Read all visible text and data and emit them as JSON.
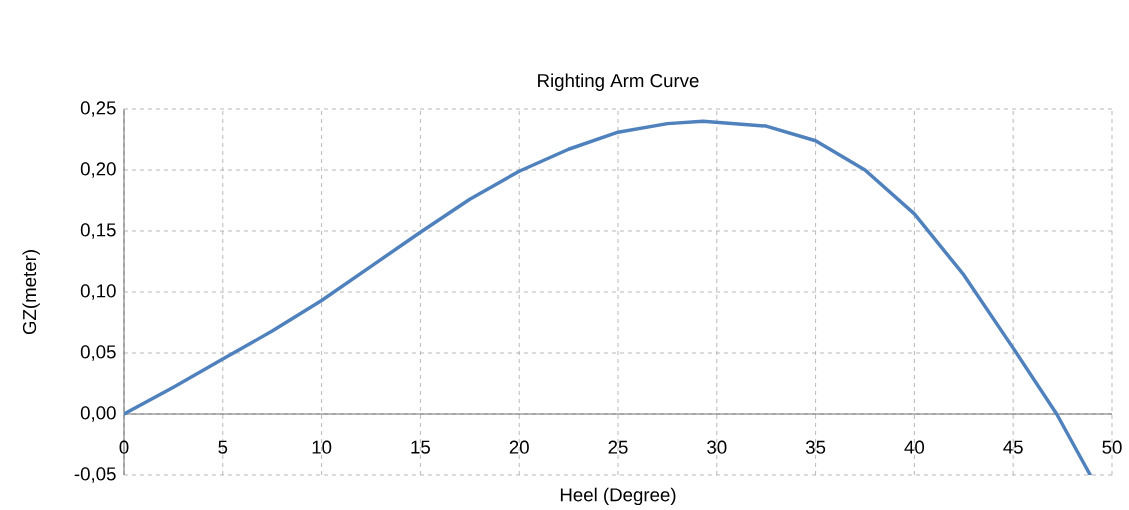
{
  "chart_data": {
    "type": "line",
    "title": "Righting Arm Curve",
    "xlabel": "Heel (Degree)",
    "ylabel": "GZ(meter)",
    "x": [
      0,
      2.5,
      5,
      7.5,
      10,
      12.5,
      15,
      17.5,
      20,
      22.5,
      25,
      27.5,
      29.3,
      32.5,
      35,
      37.5,
      40,
      42.5,
      45,
      47.2,
      48.9
    ],
    "series": [
      {
        "color": "#4f81bd",
        "values": [
          0,
          0.022,
          0.045,
          0.068,
          0.093,
          0.121,
          0.149,
          0.176,
          0.199,
          0.217,
          0.231,
          0.238,
          0.24,
          0.236,
          0.224,
          0.2,
          0.164,
          0.114,
          0.054,
          0,
          -0.05
        ]
      }
    ],
    "xlim": [
      0,
      50
    ],
    "xticks": [
      0,
      5,
      10,
      15,
      20,
      25,
      30,
      35,
      40,
      45,
      50
    ],
    "ylim": [
      -0.05,
      0.25
    ],
    "yticks": [
      {
        "value": -0.05,
        "label": "-0,05"
      },
      {
        "value": 0,
        "label": "0,00"
      },
      {
        "value": 0.05,
        "label": "0,05"
      },
      {
        "value": 0.1,
        "label": "0,10"
      },
      {
        "value": 0.15,
        "label": "0,15"
      },
      {
        "value": 0.2,
        "label": "0,20"
      },
      {
        "value": 0.25,
        "label": "0,25"
      }
    ],
    "grid": true,
    "legend": false,
    "marker": "none",
    "line_style": "solid"
  }
}
